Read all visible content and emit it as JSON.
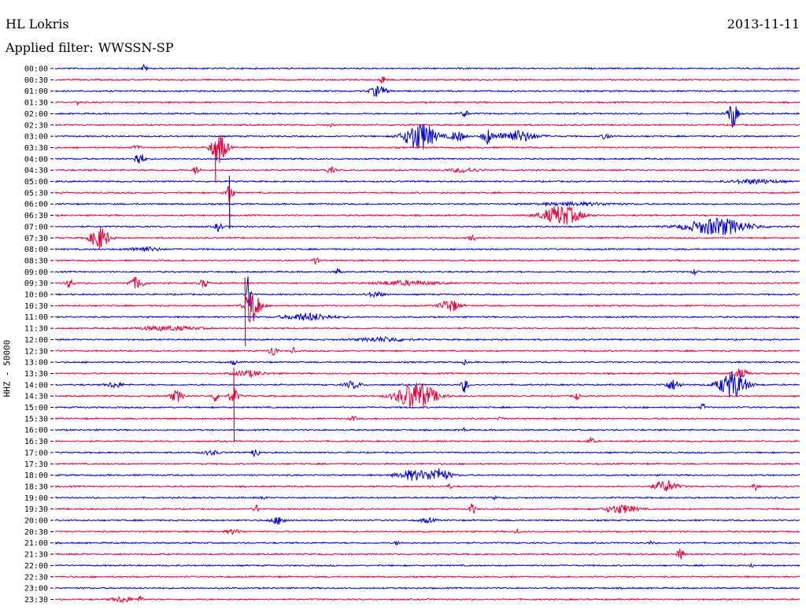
{
  "header": {
    "station": "HL Lokris",
    "date": "2013-11-11",
    "filter_prefix": "Applied filter:",
    "filter_name": "WWSSN-SP"
  },
  "chart_data": {
    "type": "line",
    "title": "HL Lokris",
    "ylabel": "HHZ - 50000",
    "series_colors": [
      "#0000cc",
      "#e8003a"
    ],
    "rows": [
      {
        "label": "00:00",
        "color": "#0000cc",
        "events": [
          {
            "x": 0.12,
            "a": 6,
            "d": 0.003
          }
        ]
      },
      {
        "label": "00:30",
        "color": "#e8003a",
        "events": [
          {
            "x": 0.44,
            "a": 6,
            "d": 0.004
          }
        ]
      },
      {
        "label": "01:00",
        "color": "#0000cc",
        "events": [
          {
            "x": 0.434,
            "a": 8,
            "d": 0.01
          }
        ]
      },
      {
        "label": "01:30",
        "color": "#e8003a",
        "events": [
          {
            "x": 0.03,
            "a": 3,
            "d": 0.003
          }
        ]
      },
      {
        "label": "02:00",
        "color": "#0000cc",
        "events": [
          {
            "x": 0.55,
            "a": 5,
            "d": 0.005
          },
          {
            "x": 0.91,
            "a": 20,
            "d": 0.006
          }
        ]
      },
      {
        "label": "02:30",
        "color": "#e8003a",
        "events": [
          {
            "x": 0.37,
            "a": 2,
            "d": 0.003
          }
        ]
      },
      {
        "label": "03:00",
        "color": "#0000cc",
        "events": [
          {
            "x": 0.49,
            "a": 20,
            "d": 0.02
          },
          {
            "x": 0.54,
            "a": 7,
            "d": 0.01
          },
          {
            "x": 0.58,
            "a": 11,
            "d": 0.006
          },
          {
            "x": 0.62,
            "a": 8,
            "d": 0.025
          },
          {
            "x": 0.74,
            "a": 5,
            "d": 0.005
          }
        ]
      },
      {
        "label": "03:30",
        "color": "#e8003a",
        "events": [
          {
            "x": 0.22,
            "a": 22,
            "d": 0.01
          },
          {
            "x": 0.11,
            "a": 3,
            "d": 0.005
          }
        ]
      },
      {
        "label": "04:00",
        "color": "#0000cc",
        "events": [
          {
            "x": 0.113,
            "a": 10,
            "d": 0.006
          }
        ]
      },
      {
        "label": "04:30",
        "color": "#e8003a",
        "events": [
          {
            "x": 0.19,
            "a": 7,
            "d": 0.004
          },
          {
            "x": 0.37,
            "a": 4,
            "d": 0.006
          },
          {
            "x": 0.55,
            "a": 3,
            "d": 0.02
          }
        ]
      },
      {
        "label": "05:00",
        "color": "#0000cc",
        "events": [
          {
            "x": 0.94,
            "a": 3,
            "d": 0.03
          }
        ]
      },
      {
        "label": "05:30",
        "color": "#e8003a",
        "events": [
          {
            "x": 0.234,
            "a": 14,
            "d": 0.005
          }
        ]
      },
      {
        "label": "06:00",
        "color": "#0000cc",
        "events": [
          {
            "x": 0.7,
            "a": 2,
            "d": 0.05
          }
        ]
      },
      {
        "label": "06:30",
        "color": "#e8003a",
        "events": [
          {
            "x": 0.68,
            "a": 14,
            "d": 0.025
          }
        ]
      },
      {
        "label": "07:00",
        "color": "#0000cc",
        "events": [
          {
            "x": 0.22,
            "a": 6,
            "d": 0.005
          },
          {
            "x": 0.89,
            "a": 12,
            "d": 0.04
          }
        ]
      },
      {
        "label": "07:30",
        "color": "#e8003a",
        "events": [
          {
            "x": 0.06,
            "a": 16,
            "d": 0.012
          },
          {
            "x": 0.56,
            "a": 5,
            "d": 0.004
          }
        ]
      },
      {
        "label": "08:00",
        "color": "#0000cc",
        "events": [
          {
            "x": 0.12,
            "a": 3,
            "d": 0.02
          }
        ]
      },
      {
        "label": "08:30",
        "color": "#e8003a",
        "events": [
          {
            "x": 0.35,
            "a": 5,
            "d": 0.004
          }
        ]
      },
      {
        "label": "09:00",
        "color": "#0000cc",
        "events": [
          {
            "x": 0.38,
            "a": 4,
            "d": 0.004
          },
          {
            "x": 0.86,
            "a": 4,
            "d": 0.004
          }
        ]
      },
      {
        "label": "09:30",
        "color": "#e8003a",
        "events": [
          {
            "x": 0.02,
            "a": 6,
            "d": 0.005
          },
          {
            "x": 0.11,
            "a": 8,
            "d": 0.01
          },
          {
            "x": 0.2,
            "a": 6,
            "d": 0.005
          },
          {
            "x": 0.47,
            "a": 3,
            "d": 0.04
          }
        ]
      },
      {
        "label": "10:00",
        "color": "#0000cc",
        "events": [
          {
            "x": 0.26,
            "a": 28,
            "d": 0.003
          },
          {
            "x": 0.43,
            "a": 4,
            "d": 0.01
          }
        ]
      },
      {
        "label": "10:30",
        "color": "#e8003a",
        "events": [
          {
            "x": 0.265,
            "a": 26,
            "d": 0.01
          },
          {
            "x": 0.53,
            "a": 9,
            "d": 0.012
          }
        ]
      },
      {
        "label": "11:00",
        "color": "#0000cc",
        "events": [
          {
            "x": 0.34,
            "a": 5,
            "d": 0.03
          }
        ]
      },
      {
        "label": "11:30",
        "color": "#e8003a",
        "events": [
          {
            "x": 0.15,
            "a": 3,
            "d": 0.04
          }
        ]
      },
      {
        "label": "12:00",
        "color": "#0000cc",
        "events": [
          {
            "x": 0.44,
            "a": 3,
            "d": 0.03
          }
        ]
      },
      {
        "label": "12:30",
        "color": "#e8003a",
        "events": [
          {
            "x": 0.293,
            "a": 8,
            "d": 0.005
          },
          {
            "x": 0.32,
            "a": 4,
            "d": 0.003
          }
        ]
      },
      {
        "label": "13:00",
        "color": "#0000cc",
        "events": [
          {
            "x": 0.24,
            "a": 4,
            "d": 0.003
          },
          {
            "x": 0.55,
            "a": 3,
            "d": 0.003
          }
        ]
      },
      {
        "label": "13:30",
        "color": "#e8003a",
        "events": [
          {
            "x": 0.26,
            "a": 4,
            "d": 0.02
          },
          {
            "x": 0.92,
            "a": 6,
            "d": 0.01
          }
        ]
      },
      {
        "label": "14:00",
        "color": "#0000cc",
        "events": [
          {
            "x": 0.08,
            "a": 4,
            "d": 0.01
          },
          {
            "x": 0.4,
            "a": 5,
            "d": 0.01
          },
          {
            "x": 0.55,
            "a": 11,
            "d": 0.004
          },
          {
            "x": 0.83,
            "a": 7,
            "d": 0.01
          },
          {
            "x": 0.91,
            "a": 19,
            "d": 0.018
          }
        ]
      },
      {
        "label": "14:30",
        "color": "#e8003a",
        "events": [
          {
            "x": 0.163,
            "a": 8,
            "d": 0.008
          },
          {
            "x": 0.215,
            "a": 8,
            "d": 0.004
          },
          {
            "x": 0.24,
            "a": 12,
            "d": 0.006
          },
          {
            "x": 0.485,
            "a": 20,
            "d": 0.025
          },
          {
            "x": 0.7,
            "a": 5,
            "d": 0.004
          }
        ]
      },
      {
        "label": "15:00",
        "color": "#0000cc",
        "events": [
          {
            "x": 0.87,
            "a": 5,
            "d": 0.003
          }
        ]
      },
      {
        "label": "15:30",
        "color": "#e8003a",
        "events": [
          {
            "x": 0.4,
            "a": 3,
            "d": 0.005
          },
          {
            "x": 0.6,
            "a": 2,
            "d": 0.005
          }
        ]
      },
      {
        "label": "16:00",
        "color": "#0000cc",
        "events": [
          {
            "x": 0.55,
            "a": 3,
            "d": 0.003
          }
        ]
      },
      {
        "label": "16:30",
        "color": "#e8003a",
        "events": [
          {
            "x": 0.72,
            "a": 4,
            "d": 0.005
          }
        ]
      },
      {
        "label": "17:00",
        "color": "#0000cc",
        "events": [
          {
            "x": 0.27,
            "a": 9,
            "d": 0.004
          },
          {
            "x": 0.21,
            "a": 3,
            "d": 0.01
          }
        ]
      },
      {
        "label": "17:30",
        "color": "#e8003a",
        "events": []
      },
      {
        "label": "18:00",
        "color": "#0000cc",
        "events": [
          {
            "x": 0.48,
            "a": 7,
            "d": 0.02
          },
          {
            "x": 0.515,
            "a": 9,
            "d": 0.015
          }
        ]
      },
      {
        "label": "18:30",
        "color": "#e8003a",
        "events": [
          {
            "x": 0.82,
            "a": 8,
            "d": 0.015
          },
          {
            "x": 0.94,
            "a": 7,
            "d": 0.004
          },
          {
            "x": 0.53,
            "a": 3,
            "d": 0.003
          }
        ]
      },
      {
        "label": "19:00",
        "color": "#0000cc",
        "events": [
          {
            "x": 0.28,
            "a": 3,
            "d": 0.003
          },
          {
            "x": 0.59,
            "a": 2,
            "d": 0.003
          }
        ]
      },
      {
        "label": "19:30",
        "color": "#e8003a",
        "events": [
          {
            "x": 0.27,
            "a": 5,
            "d": 0.004
          },
          {
            "x": 0.56,
            "a": 8,
            "d": 0.004
          },
          {
            "x": 0.76,
            "a": 6,
            "d": 0.02
          }
        ]
      },
      {
        "label": "20:00",
        "color": "#0000cc",
        "events": [
          {
            "x": 0.3,
            "a": 5,
            "d": 0.01
          },
          {
            "x": 0.5,
            "a": 3,
            "d": 0.01
          }
        ]
      },
      {
        "label": "20:30",
        "color": "#e8003a",
        "events": [
          {
            "x": 0.24,
            "a": 3,
            "d": 0.01
          },
          {
            "x": 0.62,
            "a": 4,
            "d": 0.003
          }
        ]
      },
      {
        "label": "21:00",
        "color": "#0000cc",
        "events": [
          {
            "x": 0.46,
            "a": 3,
            "d": 0.003
          },
          {
            "x": 0.8,
            "a": 2,
            "d": 0.003
          }
        ]
      },
      {
        "label": "21:30",
        "color": "#e8003a",
        "events": [
          {
            "x": 0.84,
            "a": 9,
            "d": 0.004
          }
        ]
      },
      {
        "label": "22:00",
        "color": "#0000cc",
        "events": [
          {
            "x": 0.935,
            "a": 3,
            "d": 0.003
          }
        ]
      },
      {
        "label": "22:30",
        "color": "#e8003a",
        "events": []
      },
      {
        "label": "23:00",
        "color": "#0000cc",
        "events": []
      },
      {
        "label": "23:30",
        "color": "#e8003a",
        "events": [
          {
            "x": 0.09,
            "a": 4,
            "d": 0.012
          },
          {
            "x": 0.115,
            "a": 4,
            "d": 0.004
          }
        ]
      }
    ],
    "spikes": [
      {
        "row": "03:30",
        "x": 0.215,
        "extent": "through 04:00 and 04:30"
      },
      {
        "row": "05:00",
        "x": 0.234,
        "extent": "through 06:30"
      },
      {
        "row": "09:30",
        "x": 0.255,
        "extent": "through 11:30"
      },
      {
        "row": "13:30",
        "x": 0.24,
        "extent": "through 16:00"
      }
    ]
  }
}
